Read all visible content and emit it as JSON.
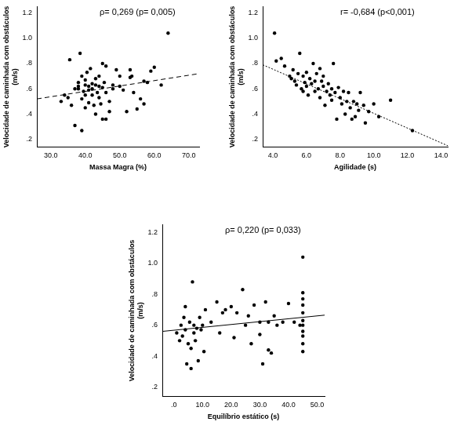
{
  "chart_data": [
    {
      "type": "scatter",
      "annotation": "ρ= 0,269 (p= 0,005)",
      "x_label": "Massa Magra (%)",
      "y_label": [
        "Velocidade de caminhada com obstáculos",
        "(m/s)"
      ],
      "xlim": [
        26,
        73
      ],
      "xticks": [
        {
          "value": 30,
          "label": "30.0"
        },
        {
          "value": 40,
          "label": "40.0"
        },
        {
          "value": 50,
          "label": "50.0"
        },
        {
          "value": 60,
          "label": "60.0"
        },
        {
          "value": 70,
          "label": "70.0"
        }
      ],
      "ylim": [
        0.14,
        1.25
      ],
      "yticks": [
        {
          "value": 0.2,
          "label": ".2"
        },
        {
          "value": 0.4,
          "label": ".4"
        },
        {
          "value": 0.6,
          "label": ".6"
        },
        {
          "value": 0.8,
          "label": ".8"
        },
        {
          "value": 1.0,
          "label": "1.0"
        },
        {
          "value": 1.2,
          "label": "1.2"
        }
      ],
      "grid": false,
      "series": [
        {
          "type": "scatter",
          "marker": "circle",
          "color": "#000000",
          "x": [
            33,
            34,
            35,
            35.5,
            36,
            37,
            37,
            38,
            38,
            38.5,
            39,
            39,
            39,
            39.5,
            40,
            40,
            40,
            40.5,
            41,
            41,
            41,
            41.5,
            42,
            42,
            42,
            42.5,
            43,
            43,
            43,
            43.5,
            44,
            44,
            44,
            45,
            45,
            45,
            45.5,
            46,
            46,
            46,
            47,
            47,
            48,
            48,
            49,
            50,
            50,
            51,
            52,
            53,
            53,
            54,
            55,
            56,
            57,
            57,
            58,
            59,
            60,
            62,
            64,
            53.5,
            44.5,
            40,
            38
          ],
          "values": [
            0.5,
            0.55,
            0.53,
            0.83,
            0.47,
            0.31,
            0.6,
            0.62,
            0.65,
            0.88,
            0.27,
            0.7,
            0.52,
            0.58,
            0.63,
            0.67,
            0.45,
            0.73,
            0.62,
            0.59,
            0.49,
            0.76,
            0.64,
            0.55,
            0.6,
            0.47,
            0.68,
            0.63,
            0.4,
            0.57,
            0.62,
            0.7,
            0.53,
            0.36,
            0.61,
            0.8,
            0.65,
            0.57,
            0.78,
            0.36,
            0.5,
            0.42,
            0.6,
            0.63,
            0.75,
            0.7,
            0.62,
            0.59,
            0.42,
            0.75,
            0.69,
            0.57,
            0.44,
            0.52,
            0.66,
            0.48,
            0.65,
            0.74,
            0.77,
            0.63,
            1.04,
            0.7,
            0.48,
            0.55,
            0.6
          ]
        },
        {
          "type": "line",
          "line_style": "dashed",
          "color": "#000000",
          "x": [
            26,
            73
          ],
          "values": [
            0.52,
            0.72
          ]
        }
      ]
    },
    {
      "type": "scatter",
      "annotation": "r= -0,684 (p<0,001)",
      "x_label": "Agilidade (s)",
      "y_label": [
        "Velocidade de caminhada com obstáculos",
        "(m/s)"
      ],
      "xlim": [
        3.4,
        14.4
      ],
      "xticks": [
        {
          "value": 4,
          "label": "4.0"
        },
        {
          "value": 6,
          "label": "6.0"
        },
        {
          "value": 8,
          "label": "8.0"
        },
        {
          "value": 10,
          "label": "10.0"
        },
        {
          "value": 12,
          "label": "12.0"
        },
        {
          "value": 14,
          "label": "14.0"
        }
      ],
      "ylim": [
        0.14,
        1.25
      ],
      "yticks": [
        {
          "value": 0.2,
          "label": ".2"
        },
        {
          "value": 0.4,
          "label": ".4"
        },
        {
          "value": 0.6,
          "label": ".6"
        },
        {
          "value": 0.8,
          "label": ".8"
        },
        {
          "value": 1.0,
          "label": "1.0"
        },
        {
          "value": 1.2,
          "label": "1.2"
        }
      ],
      "grid": false,
      "series": [
        {
          "type": "scatter",
          "marker": "circle",
          "color": "#000000",
          "x": [
            4.1,
            4.2,
            4.5,
            4.7,
            5,
            5.1,
            5.2,
            5.3,
            5.4,
            5.5,
            5.6,
            5.7,
            5.8,
            5.9,
            6,
            6,
            6.1,
            6.2,
            6.3,
            6.4,
            6.5,
            6.5,
            6.6,
            6.7,
            6.8,
            6.9,
            7,
            7,
            7.1,
            7.2,
            7.3,
            7.4,
            7.5,
            7.6,
            7.7,
            7.8,
            7.9,
            8,
            8.1,
            8.2,
            8.3,
            8.4,
            8.5,
            8.6,
            8.7,
            8.8,
            9,
            9.1,
            9.2,
            9.4,
            9.5,
            9.7,
            10,
            10.3,
            11,
            12.3,
            6.8,
            7.5,
            5.8,
            8.9
          ],
          "values": [
            1.04,
            0.82,
            0.84,
            0.78,
            0.7,
            0.68,
            0.75,
            0.66,
            0.63,
            0.72,
            0.88,
            0.6,
            0.7,
            0.65,
            0.62,
            0.73,
            0.55,
            0.68,
            0.64,
            0.8,
            0.58,
            0.66,
            0.72,
            0.6,
            0.53,
            0.66,
            0.62,
            0.7,
            0.47,
            0.58,
            0.64,
            0.55,
            0.51,
            0.8,
            0.57,
            0.36,
            0.61,
            0.53,
            0.48,
            0.58,
            0.4,
            0.5,
            0.57,
            0.45,
            0.36,
            0.5,
            0.48,
            0.43,
            0.57,
            0.47,
            0.33,
            0.42,
            0.48,
            0.38,
            0.51,
            0.27,
            0.76,
            0.6,
            0.58,
            0.38
          ]
        },
        {
          "type": "line",
          "line_style": "dotted",
          "color": "#000000",
          "x": [
            3.4,
            14.4
          ],
          "values": [
            0.79,
            0.15
          ]
        }
      ]
    },
    {
      "type": "scatter",
      "annotation": "ρ= 0,220 (p= 0,033)",
      "x_label": "Equilíbrio estático (s)",
      "y_label": [
        "Velocidade de caminhada com obstáculos",
        "(m/s)"
      ],
      "xlim": [
        -4,
        52.6
      ],
      "xticks": [
        {
          "value": 0,
          "label": ".0"
        },
        {
          "value": 10,
          "label": "10.0"
        },
        {
          "value": 20,
          "label": "20.0"
        },
        {
          "value": 30,
          "label": "30.0"
        },
        {
          "value": 40,
          "label": "40.0"
        },
        {
          "value": 50,
          "label": "50.0"
        }
      ],
      "ylim": [
        0.14,
        1.25
      ],
      "yticks": [
        {
          "value": 0.2,
          "label": ".2"
        },
        {
          "value": 0.4,
          "label": ".4"
        },
        {
          "value": 0.6,
          "label": ".6"
        },
        {
          "value": 0.8,
          "label": ".8"
        },
        {
          "value": 1.0,
          "label": "1.0"
        },
        {
          "value": 1.2,
          "label": "1.2"
        }
      ],
      "grid": false,
      "series": [
        {
          "type": "scatter",
          "marker": "circle",
          "color": "#000000",
          "x": [
            45,
            45,
            45,
            45,
            45,
            45,
            45,
            45,
            45,
            45,
            45,
            1,
            2,
            2.5,
            3,
            3.5,
            4,
            4,
            4.5,
            5,
            5.5,
            6,
            6,
            6.5,
            7,
            7,
            7.5,
            8,
            8.5,
            9,
            9.5,
            10,
            10.5,
            11,
            13,
            15,
            16,
            17,
            18,
            20,
            21,
            22,
            24,
            25,
            26,
            27,
            28,
            30,
            30,
            31,
            32,
            33,
            33,
            34,
            35,
            36,
            38,
            40,
            42,
            44
          ],
          "values": [
            1.04,
            0.81,
            0.77,
            0.73,
            0.68,
            0.63,
            0.6,
            0.56,
            0.53,
            0.48,
            0.43,
            0.55,
            0.5,
            0.6,
            0.53,
            0.65,
            0.72,
            0.57,
            0.35,
            0.48,
            0.62,
            0.32,
            0.45,
            0.88,
            0.55,
            0.6,
            0.5,
            0.58,
            0.37,
            0.65,
            0.57,
            0.6,
            0.43,
            0.7,
            0.62,
            0.75,
            0.55,
            0.68,
            0.7,
            0.72,
            0.52,
            0.68,
            0.83,
            0.6,
            0.66,
            0.48,
            0.73,
            0.62,
            0.54,
            0.35,
            0.75,
            0.44,
            0.62,
            0.42,
            0.66,
            0.6,
            0.62,
            0.74,
            0.62,
            0.6
          ]
        },
        {
          "type": "line",
          "line_style": "solid",
          "color": "#000000",
          "x": [
            -4,
            52.6
          ],
          "values": [
            0.56,
            0.665
          ]
        }
      ]
    }
  ]
}
